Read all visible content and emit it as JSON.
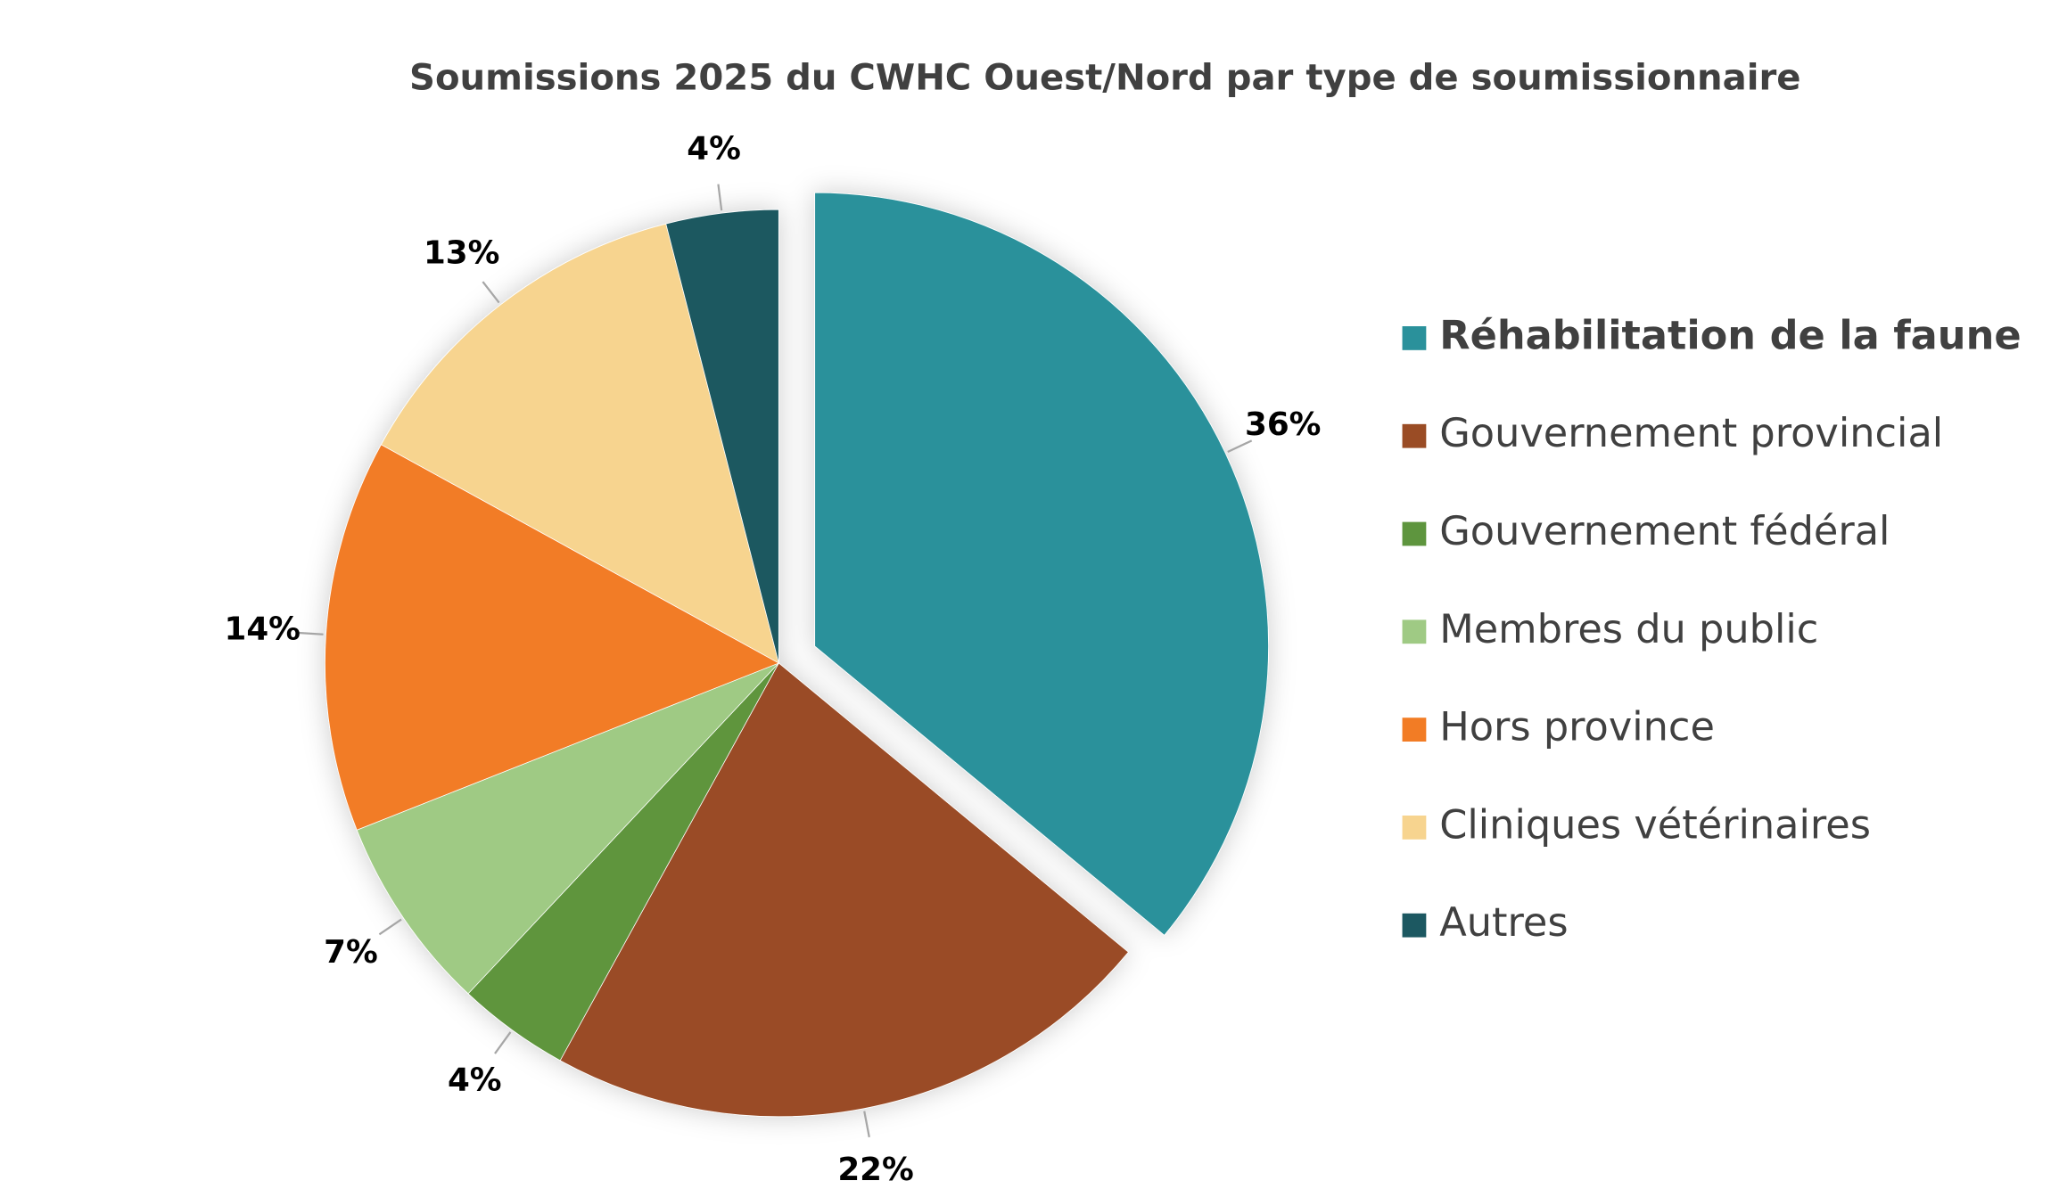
{
  "chart_data": {
    "type": "pie",
    "title": "Soumissions 2025 du CWHC Ouest/Nord par type de soumissionnaire",
    "categories": [
      "Réhabilitation de la faune",
      "Gouvernement provincial",
      "Gouvernement fédéral",
      "Membres du public",
      "Hors province",
      "Cliniques vétérinaires",
      "Autres"
    ],
    "values": [
      36,
      22,
      4,
      7,
      14,
      13,
      4
    ],
    "value_labels": [
      "36%",
      "22%",
      "4%",
      "7%",
      "14%",
      "13%",
      "4%"
    ],
    "colors": [
      "#2a919b",
      "#9a4c25",
      "#5e953e",
      "#9fca84",
      "#f27c25",
      "#f7d48f",
      "#1c5861"
    ],
    "legend": "right"
  }
}
